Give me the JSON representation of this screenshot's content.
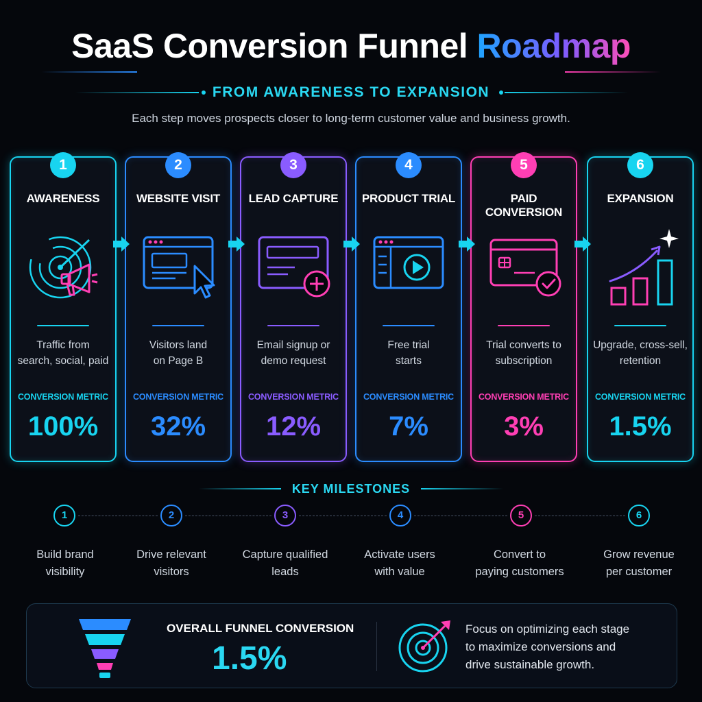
{
  "header": {
    "title_main": "SaaS Conversion Funnel",
    "title_accent": "Roadmap",
    "subtitle": "FROM AWARENESS TO EXPANSION",
    "tagline": "Each step moves prospects closer to long-term customer value and business growth."
  },
  "stages": [
    {
      "number": "1",
      "title": "AWARENESS",
      "desc_line1": "Traffic from",
      "desc_line2": "search, social, paid",
      "metric_label": "CONVERSION METRIC",
      "metric_value": "100%",
      "icon": "radar-megaphone-icon",
      "color": "#18d4f0"
    },
    {
      "number": "2",
      "title": "WEBSITE VISIT",
      "desc_line1": "Visitors land",
      "desc_line2": "on Page B",
      "metric_label": "CONVERSION METRIC",
      "metric_value": "32%",
      "icon": "browser-cursor-icon",
      "color": "#2b8cff"
    },
    {
      "number": "3",
      "title": "LEAD CAPTURE",
      "desc_line1": "Email signup or",
      "desc_line2": "demo request",
      "metric_label": "CONVERSION METRIC",
      "metric_value": "12%",
      "icon": "form-plus-icon",
      "color": "#8a5cff"
    },
    {
      "number": "4",
      "title": "PRODUCT TRIAL",
      "desc_line1": "Free trial",
      "desc_line2": "starts",
      "metric_label": "CONVERSION METRIC",
      "metric_value": "7%",
      "icon": "app-play-icon",
      "color": "#2b8cff"
    },
    {
      "number": "5",
      "title": "PAID CONVERSION",
      "desc_line1": "Trial converts to",
      "desc_line2": "subscription",
      "metric_label": "CONVERSION METRIC",
      "metric_value": "3%",
      "icon": "credit-card-check-icon",
      "color": "#ff3fb4"
    },
    {
      "number": "6",
      "title": "EXPANSION",
      "desc_line1": "Upgrade, cross-sell,",
      "desc_line2": "retention",
      "metric_label": "CONVERSION METRIC",
      "metric_value": "1.5%",
      "icon": "growth-chart-icon",
      "color": "#18d4f0"
    }
  ],
  "milestones": {
    "header": "KEY MILESTONES",
    "items": [
      {
        "number": "1",
        "line1": "Build brand",
        "line2": "visibility",
        "color": "#18d4f0"
      },
      {
        "number": "2",
        "line1": "Drive relevant",
        "line2": "visitors",
        "color": "#2b8cff"
      },
      {
        "number": "3",
        "line1": "Capture qualified",
        "line2": "leads",
        "color": "#8a5cff"
      },
      {
        "number": "4",
        "line1": "Activate users",
        "line2": "with value",
        "color": "#2b8cff"
      },
      {
        "number": "5",
        "line1": "Convert to",
        "line2": "paying customers",
        "color": "#ff3fb4"
      },
      {
        "number": "6",
        "line1": "Grow revenue",
        "line2": "per customer",
        "color": "#18d4f0"
      }
    ]
  },
  "summary": {
    "label": "OVERALL FUNNEL CONVERSION",
    "value": "1.5%",
    "text_line1": "Focus on optimizing each stage",
    "text_line2": "to maximize conversions and",
    "text_line3": "drive sustainable growth."
  }
}
